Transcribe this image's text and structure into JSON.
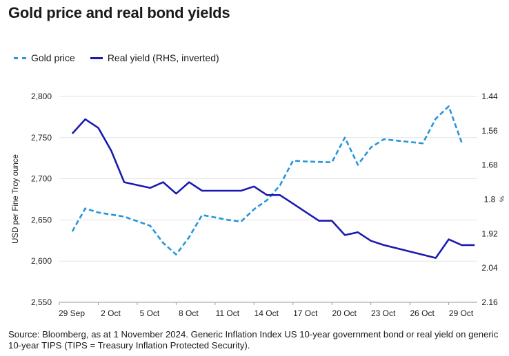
{
  "chart_data": {
    "type": "line",
    "title": "Gold price and real bond yields",
    "xlabel": "",
    "ylabel": "USD per Fine Troy ounce",
    "y2label": "%",
    "ylim": [
      2550,
      2800
    ],
    "y2lim": [
      1.44,
      2.16
    ],
    "y2_inverted": true,
    "yticks": [
      "2,800",
      "2,750",
      "2,700",
      "2,650",
      "2,600",
      "2,550"
    ],
    "yticks_values": [
      2800,
      2750,
      2700,
      2650,
      2600,
      2550
    ],
    "y2ticks": [
      "1.44",
      "1.56",
      "1.68",
      "1.8",
      "1.92",
      "2.04",
      "2.16"
    ],
    "y2ticks_values": [
      1.44,
      1.56,
      1.68,
      1.8,
      1.92,
      2.04,
      2.16
    ],
    "xticks": [
      "29 Sep",
      "2 Oct",
      "5 Oct",
      "8 Oct",
      "11 Oct",
      "14 Oct",
      "17 Oct",
      "20 Oct",
      "23 Oct",
      "26 Oct",
      "29 Oct"
    ],
    "xticks_days": [
      0,
      3,
      6,
      9,
      12,
      15,
      18,
      21,
      24,
      27,
      30
    ],
    "grid": true,
    "legend_position": "top-left",
    "series": [
      {
        "name": "Gold price",
        "axis": "left",
        "style": "dashed",
        "color": "#2596d9",
        "x_days": [
          1,
          2,
          3,
          5,
          7,
          8,
          9,
          10,
          11,
          13,
          14,
          15,
          16,
          17,
          18,
          19,
          21,
          22,
          23,
          24,
          25,
          28,
          29,
          30,
          31
        ],
        "values": [
          2636,
          2664,
          2659,
          2654,
          2643,
          2622,
          2608,
          2629,
          2656,
          2650,
          2648,
          2663,
          2674,
          2692,
          2722,
          2721,
          2720,
          2750,
          2717,
          2738,
          2748,
          2743,
          2773,
          2788,
          2744
        ]
      },
      {
        "name": "Real yield (RHS, inverted)",
        "axis": "right",
        "style": "solid",
        "color": "#1a1ab0",
        "x_days": [
          1,
          2,
          3,
          4,
          5,
          7,
          8,
          9,
          10,
          11,
          14,
          15,
          16,
          17,
          18,
          19,
          20,
          21,
          22,
          23,
          24,
          25,
          29,
          30,
          31,
          32
        ],
        "values": [
          1.57,
          1.52,
          1.55,
          1.63,
          1.74,
          1.76,
          1.74,
          1.78,
          1.74,
          1.77,
          1.77,
          1.755,
          1.785,
          1.785,
          1.815,
          1.845,
          1.875,
          1.875,
          1.925,
          1.915,
          1.945,
          1.96,
          2.005,
          1.94,
          1.96,
          1.96
        ]
      }
    ]
  },
  "source": "Source: Bloomberg, as at 1 November 2024. Generic Inflation Index US 10-year government bond or real yield on generic 10-year TIPS (TIPS = Treasury Inflation Protected Security)."
}
